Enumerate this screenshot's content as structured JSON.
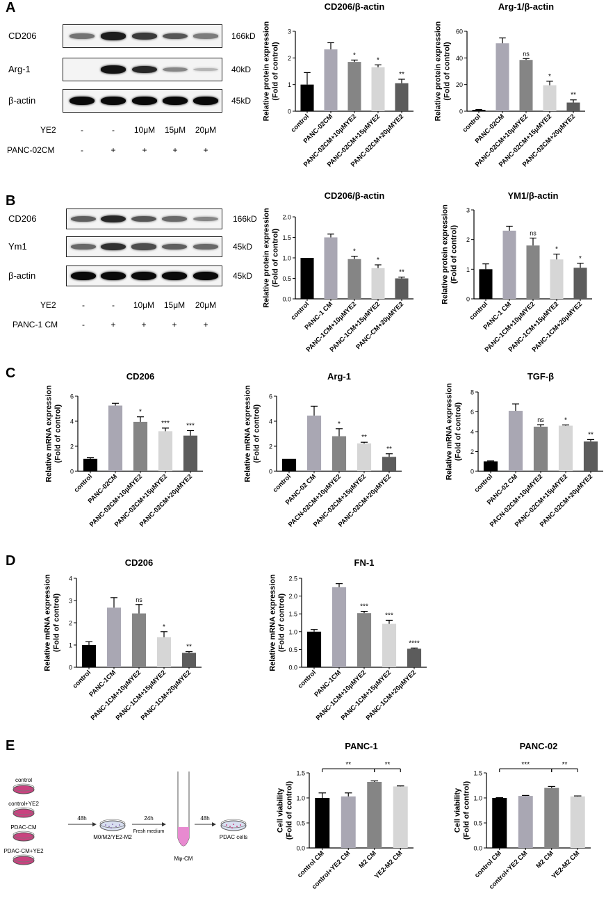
{
  "panels": {
    "A": {
      "label": "A",
      "blot": {
        "rows": [
          {
            "name": "CD206",
            "kd": "166kD",
            "intensity": [
              0.45,
              0.9,
              0.75,
              0.6,
              0.4
            ]
          },
          {
            "name": "Arg-1",
            "kd": "40kD",
            "intensity": [
              0.0,
              0.95,
              0.85,
              0.35,
              0.1
            ]
          },
          {
            "name": "β-actin",
            "kd": "45kD",
            "intensity": [
              1,
              1,
              1,
              1,
              1
            ]
          }
        ],
        "treatments": [
          {
            "name": "YE2",
            "values": [
              "-",
              "-",
              "10μM",
              "15μM",
              "20μM"
            ]
          },
          {
            "name": "PANC-02CM",
            "values": [
              "-",
              "+",
              "+",
              "+",
              "+"
            ]
          }
        ]
      }
    },
    "B": {
      "label": "B",
      "blot": {
        "rows": [
          {
            "name": "CD206",
            "kd": "166kD",
            "intensity": [
              0.55,
              0.85,
              0.6,
              0.5,
              0.35
            ]
          },
          {
            "name": "Ym1",
            "kd": "45kD",
            "intensity": [
              0.5,
              0.8,
              0.65,
              0.55,
              0.5
            ]
          },
          {
            "name": "β-actin",
            "kd": "45kD",
            "intensity": [
              1,
              1,
              1,
              1,
              1
            ]
          }
        ],
        "treatments": [
          {
            "name": "YE2",
            "values": [
              "-",
              "-",
              "10μM",
              "15μM",
              "20μM"
            ]
          },
          {
            "name": "PANC-1 CM",
            "values": [
              "-",
              "+",
              "+",
              "+",
              "+"
            ]
          }
        ]
      }
    },
    "C": {
      "label": "C"
    },
    "D": {
      "label": "D"
    },
    "E": {
      "label": "E",
      "diagram": {
        "groups": [
          "control",
          "control+YE2",
          "PDAC-CM",
          "PDAC-CM+YE2"
        ],
        "step1": "48h",
        "dish1": "M0/M2/YE2-M2",
        "step2": "24h",
        "step2_note": "Fresh medium",
        "tube": "Mφ-CM",
        "step3": "48h",
        "dish2": "PDAC cells"
      }
    }
  },
  "colors": {
    "black": "#000000",
    "light_gray": "#a9a7b3",
    "mid_gray": "#858585",
    "pale_gray": "#d6d6d6",
    "dark_gray": "#5c5c5c",
    "dish_pink": "#c9427f",
    "tube_pink": "#e88ad0"
  },
  "chart_data": [
    {
      "id": "A1",
      "type": "bar",
      "title": "CD206/β-actin",
      "ylabel": "Relative protein expression\n(Fold of control)",
      "ylim": [
        0,
        3
      ],
      "yticks": [
        0,
        1,
        2,
        3
      ],
      "categories": [
        "control",
        "PANC-02CM",
        "PANC-02CM+10μMYE2",
        "PANC-02CM+15μMYE2",
        "PANC-02CM+20μMYE2"
      ],
      "values": [
        1.0,
        2.32,
        1.85,
        1.65,
        1.05
      ],
      "errors": [
        0.45,
        0.25,
        0.07,
        0.09,
        0.15
      ],
      "sig": [
        "",
        "",
        "*",
        "*",
        "**"
      ]
    },
    {
      "id": "A2",
      "type": "bar",
      "title": "Arg-1/β-actin",
      "ylabel": "Relative protein expression\n(Fold of control)",
      "ylim": [
        0,
        60
      ],
      "yticks": [
        0,
        20,
        40,
        60
      ],
      "categories": [
        "control",
        "PANC-02CM",
        "PANC-02CM+10μMYE2",
        "PANC-02CM+15μMYE2",
        "PANC-02CM+20μMYE2"
      ],
      "values": [
        1.0,
        51,
        38.5,
        19.5,
        6.5
      ],
      "errors": [
        0.3,
        4,
        1,
        3,
        2
      ],
      "sig": [
        "",
        "",
        "ns",
        "*",
        "**"
      ]
    },
    {
      "id": "B1",
      "type": "bar",
      "title": "CD206/β-actin",
      "ylabel": "Relative protein expression\n(Fold of control)",
      "ylim": [
        0,
        2.0
      ],
      "yticks": [
        0,
        0.5,
        1.0,
        1.5,
        2.0
      ],
      "ytick_labels": [
        "0.0",
        "0.5",
        "1.0",
        "1.5",
        "2.0"
      ],
      "categories": [
        "control",
        "PANC-1 CM",
        "PANC-1CM+10μMYE2",
        "PANC-1CM+15μMYE2",
        "PANC-CM+20μMYE2"
      ],
      "values": [
        1.0,
        1.5,
        0.97,
        0.75,
        0.5
      ],
      "errors": [
        0,
        0.08,
        0.07,
        0.08,
        0.03
      ],
      "sig": [
        "",
        "",
        "*",
        "*",
        "**"
      ]
    },
    {
      "id": "B2",
      "type": "bar",
      "title": "YM1/β-actin",
      "ylabel": "Relative protein expression\n(Fold of control)",
      "ylim": [
        0,
        3
      ],
      "yticks": [
        0,
        1,
        2,
        3
      ],
      "categories": [
        "control",
        "PANC-1 CM",
        "PANC-1CM+10μMYE2",
        "PANC-1CM+15μMYE2",
        "PANC-1CM+20μMYE2"
      ],
      "values": [
        1.0,
        2.3,
        1.8,
        1.33,
        1.05
      ],
      "errors": [
        0.18,
        0.15,
        0.25,
        0.18,
        0.15
      ],
      "sig": [
        "",
        "",
        "ns",
        "*",
        "*"
      ]
    },
    {
      "id": "C1",
      "type": "bar",
      "title": "CD206",
      "ylabel": "Relative mRNA expression\n(Fold of control)",
      "ylim": [
        0,
        6
      ],
      "yticks": [
        0,
        2,
        4,
        6
      ],
      "categories": [
        "control",
        "PANC-02CM",
        "PANC-02CM+10μMYE2",
        "PANC-02CM+15μMYE2",
        "PANC-02CM+20μMYE2"
      ],
      "values": [
        1.0,
        5.25,
        3.95,
        3.2,
        2.85
      ],
      "errors": [
        0.08,
        0.18,
        0.4,
        0.25,
        0.4
      ],
      "sig": [
        "",
        "",
        "*",
        "***",
        "***"
      ]
    },
    {
      "id": "C2",
      "type": "bar",
      "title": "Arg-1",
      "ylabel": "Relative mRNA expression\n(Fold of control)",
      "ylim": [
        0,
        6
      ],
      "yticks": [
        0,
        2,
        4,
        6
      ],
      "categories": [
        "control",
        "PANC-02 CM",
        "PACN-02CM+10μMYE2",
        "PANC-02CM+15μMYE2",
        "PANC-02CM+20μMYE2"
      ],
      "values": [
        1.0,
        4.45,
        2.8,
        2.22,
        1.15
      ],
      "errors": [
        0,
        0.75,
        0.6,
        0.1,
        0.25
      ],
      "sig": [
        "",
        "",
        "*",
        "**",
        "**"
      ]
    },
    {
      "id": "C3",
      "type": "bar",
      "title": "TGF-β",
      "ylabel": "Relative mRNA expression\n(Fold of control)",
      "ylim": [
        0,
        8
      ],
      "yticks": [
        0,
        2,
        4,
        6,
        8
      ],
      "categories": [
        "control",
        "PANC-02 CM",
        "PACN-02CM+10μMYE2",
        "PANC-02CM+15μMYE2",
        "PANC-02CM+20μMYE2"
      ],
      "values": [
        1.0,
        6.1,
        4.5,
        4.6,
        3.0
      ],
      "errors": [
        0.05,
        0.7,
        0.2,
        0.08,
        0.2
      ],
      "sig": [
        "",
        "",
        "ns",
        "*",
        "**"
      ]
    },
    {
      "id": "D1",
      "type": "bar",
      "title": "CD206",
      "ylabel": "Relative mRNA expression\n(Fold of control)",
      "ylim": [
        0,
        4
      ],
      "yticks": [
        0,
        1,
        2,
        3,
        4
      ],
      "categories": [
        "control",
        "PANC-1CM",
        "PANC-1CM+10μMYE2",
        "PANC-1CM+15μMYE2",
        "PANC-1CM+20μMYE2"
      ],
      "values": [
        1.0,
        2.68,
        2.42,
        1.35,
        0.65
      ],
      "errors": [
        0.15,
        0.45,
        0.4,
        0.25,
        0.05
      ],
      "sig": [
        "",
        "",
        "ns",
        "*",
        "**"
      ]
    },
    {
      "id": "D2",
      "type": "bar",
      "title": "FN-1",
      "ylabel": "Relative mRNA expression\n(Fold of control)",
      "ylim": [
        0,
        2.5
      ],
      "yticks": [
        0,
        0.5,
        1.0,
        1.5,
        2.0,
        2.5
      ],
      "ytick_labels": [
        "0.0",
        "0.5",
        "1.0",
        "1.5",
        "2.0",
        "2.5"
      ],
      "categories": [
        "control",
        "PANC-1CM",
        "PANC-1CM+10μMYE2",
        "PANC-1CM+15μMYE2",
        "PANC-1CM+20μMYE2"
      ],
      "values": [
        1.0,
        2.25,
        1.52,
        1.22,
        0.52
      ],
      "errors": [
        0.06,
        0.1,
        0.05,
        0.1,
        0.02
      ],
      "sig": [
        "",
        "",
        "***",
        "***",
        "****"
      ]
    },
    {
      "id": "E1",
      "type": "bar",
      "title": "PANC-1",
      "ylabel": "Cell viability\n(Fold of control)",
      "ylim": [
        0,
        1.5
      ],
      "yticks": [
        0,
        0.5,
        1.0,
        1.5
      ],
      "ytick_labels": [
        "0.0",
        "0.5",
        "1.0",
        "1.5"
      ],
      "categories": [
        "control CM",
        "control+YE2 CM",
        "M2 CM",
        "YE2-M2 CM"
      ],
      "values": [
        1.0,
        1.03,
        1.32,
        1.23
      ],
      "errors": [
        0.1,
        0.07,
        0.02,
        0.01
      ],
      "sig": [
        "",
        "",
        "",
        ""
      ],
      "brackets": [
        {
          "from": 0,
          "to": 2,
          "label": "**"
        },
        {
          "from": 2,
          "to": 3,
          "label": "**"
        }
      ]
    },
    {
      "id": "E2",
      "type": "bar",
      "title": "PANC-02",
      "ylabel": "Cell viability\n(Fold of control)",
      "ylim": [
        0,
        1.5
      ],
      "yticks": [
        0,
        0.5,
        1.0,
        1.5
      ],
      "ytick_labels": [
        "0.0",
        "0.5",
        "1.0",
        "1.5"
      ],
      "categories": [
        "control CM",
        "control+YE2 CM",
        "M2 CM",
        "YE2-M2 CM"
      ],
      "values": [
        1.0,
        1.04,
        1.2,
        1.03
      ],
      "errors": [
        0.005,
        0.01,
        0.03,
        0.01
      ],
      "sig": [
        "",
        "",
        "",
        ""
      ],
      "brackets": [
        {
          "from": 0,
          "to": 2,
          "label": "***"
        },
        {
          "from": 2,
          "to": 3,
          "label": "**"
        }
      ]
    }
  ]
}
